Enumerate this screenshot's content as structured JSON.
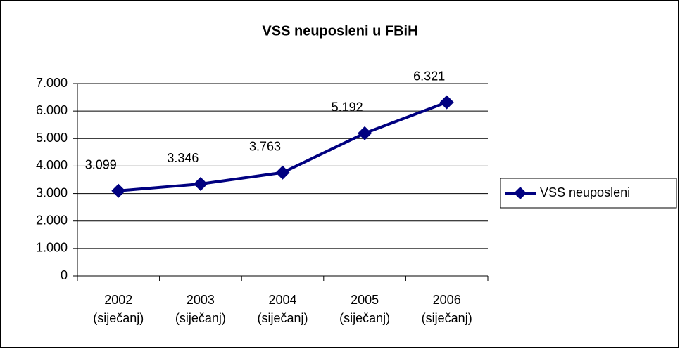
{
  "chart_data": {
    "type": "line",
    "title": "VSS neuposleni u FBiH",
    "categories": [
      "2002 (siječanj)",
      "2003 (siječanj)",
      "2004 (siječanj)",
      "2005 (siječanj)",
      "2006 (siječanj)"
    ],
    "series": [
      {
        "name": "VSS neuposleni",
        "color": "#000080",
        "values": [
          3099,
          3346,
          3763,
          5192,
          6321
        ],
        "value_labels": [
          "3.099",
          "3.346",
          "3.763",
          "5.192",
          "6.321"
        ]
      }
    ],
    "ylim": [
      0,
      7000
    ],
    "yticks": [
      0,
      {
        "value": 1000,
        "label": "1.000"
      },
      {
        "value": 2000,
        "label": "2.000"
      },
      {
        "value": 3000,
        "label": "3.000"
      },
      {
        "value": 4000,
        "label": "4.000"
      },
      {
        "value": 5000,
        "label": "5.000"
      },
      {
        "value": 6000,
        "label": "6.000"
      },
      {
        "value": 7000,
        "label": "7.000"
      }
    ],
    "grid": true,
    "legend": "right"
  }
}
